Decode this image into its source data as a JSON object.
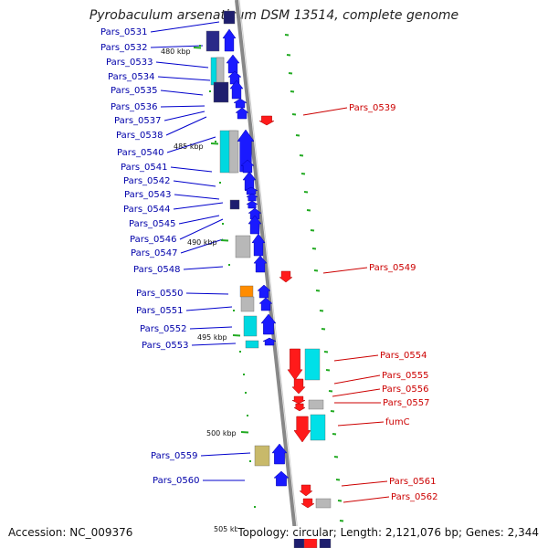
{
  "title": "Pyrobaculum arsenaticum DSM 13514, complete genome",
  "footer": {
    "accession": "Accession: NC_009376",
    "summary": "Topology: circular; Length: 2,121,076 bp; Genes: 2,344"
  },
  "colors": {
    "forward_gene": "#1a1aff",
    "reverse_gene": "#ff1a1a",
    "cds_forward": "#00d8e0",
    "cds_reverse": "#00e0e8",
    "pseudo": "#b8b8b8",
    "navy": "#1e1e6e",
    "orange": "#ff8c00",
    "khaki": "#c8b96a",
    "backbone": "#888888",
    "tick": "#22aa22"
  },
  "scale_labels": [
    "480 kbp",
    "485 kbp",
    "490 kbp",
    "495 kbp",
    "500 kbp",
    "505 kbp"
  ],
  "left_labels": [
    "Pars_0531",
    "Pars_0532",
    "Pars_0533",
    "Pars_0534",
    "Pars_0535",
    "Pars_0536",
    "Pars_0537",
    "Pars_0538",
    "Pars_0540",
    "Pars_0541",
    "Pars_0542",
    "Pars_0543",
    "Pars_0544",
    "Pars_0545",
    "Pars_0546",
    "Pars_0547",
    "Pars_0548",
    "Pars_0550",
    "Pars_0551",
    "Pars_0552",
    "Pars_0553",
    "Pars_0559",
    "Pars_0560"
  ],
  "right_labels": [
    "Pars_0539",
    "Pars_0549",
    "Pars_0554",
    "Pars_0555",
    "Pars_0556",
    "Pars_0557",
    "fumC",
    "Pars_0561",
    "Pars_0562"
  ]
}
